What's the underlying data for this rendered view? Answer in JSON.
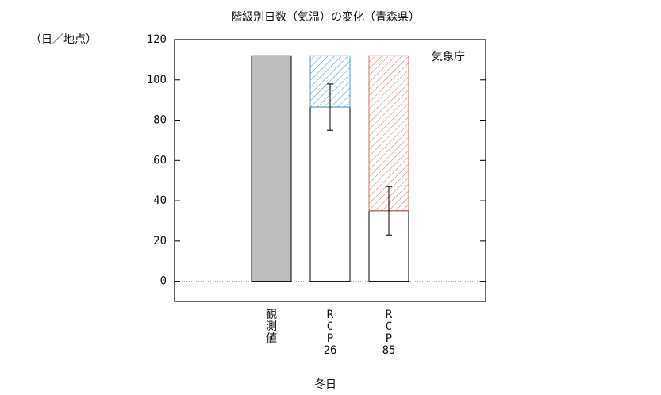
{
  "chart_data": {
    "type": "bar",
    "stacked": true,
    "title": "階級別日数（気温）の変化（青森県）",
    "y_label": "（日／地点）",
    "annotation": "気象庁",
    "x_label": "冬日",
    "categories": [
      [
        "観",
        "測",
        "値"
      ],
      [
        "R",
        "C",
        "P",
        "26"
      ],
      [
        "R",
        "C",
        "P",
        "85"
      ]
    ],
    "series": [
      {
        "values": [
          112,
          86.5,
          35
        ],
        "colors": [
          "#bebebe",
          "#ffffff",
          "#ffffff"
        ],
        "errors": [
          null,
          11.5,
          12
        ]
      },
      {
        "values": [
          null,
          25.5,
          77
        ],
        "colors": [
          null,
          "#4f9bc7",
          "#d46a5c"
        ],
        "hatch": true
      }
    ],
    "ylim": [
      -10,
      120
    ],
    "yticks": [
      0,
      20,
      40,
      60,
      80,
      100,
      120
    ]
  }
}
